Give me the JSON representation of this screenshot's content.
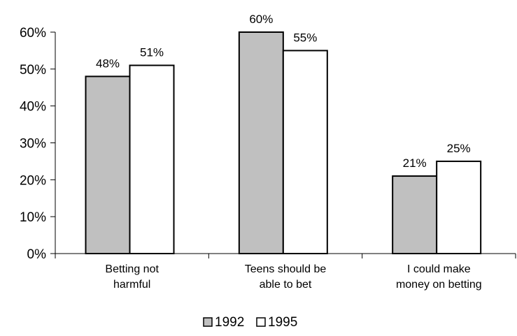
{
  "chart_data": {
    "type": "bar",
    "title": "",
    "xlabel": "",
    "ylabel": "",
    "ylim": [
      0,
      60
    ],
    "yticks": [
      "0%",
      "10%",
      "20%",
      "30%",
      "40%",
      "50%",
      "60%"
    ],
    "ytick_values": [
      0,
      10,
      20,
      30,
      40,
      50,
      60
    ],
    "categories": [
      [
        "Betting not",
        "harmful"
      ],
      [
        "Teens should be",
        "able to bet"
      ],
      [
        "I could make",
        "money on betting"
      ]
    ],
    "series": [
      {
        "name": "1992",
        "values": [
          48,
          60,
          21
        ],
        "labels": [
          "48%",
          "60%",
          "21%"
        ],
        "color": "#c0c0c0"
      },
      {
        "name": "1995",
        "values": [
          51,
          55,
          25
        ],
        "labels": [
          "51%",
          "55%",
          "25%"
        ],
        "color": "#ffffff"
      }
    ],
    "grid": false,
    "legend": "bottom-center"
  }
}
